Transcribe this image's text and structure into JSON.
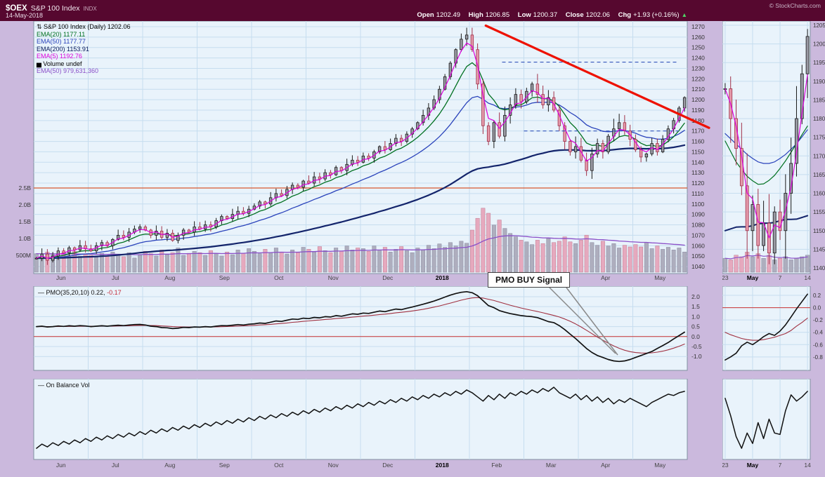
{
  "header": {
    "symbol": "$OEX",
    "index_name": "S&P 100 Index",
    "exchange": "INDX",
    "date": "14-May-2018",
    "copyright": "© StockCharts.com",
    "quote": {
      "open_label": "Open",
      "open": "1202.49",
      "high_label": "High",
      "high": "1206.85",
      "low_label": "Low",
      "low": "1200.37",
      "close_label": "Close",
      "close": "1202.06",
      "chg_label": "Chg",
      "chg": "+1.93 (+0.16%)",
      "direction_arrow": "▲"
    }
  },
  "legend": {
    "main": [
      {
        "icon": "⇅",
        "label": "S&P 100 Index (Daily) 1202.06",
        "color": "#000000"
      },
      {
        "label": "EMA(20) 1177.11",
        "color": "#007020"
      },
      {
        "label": "EMA(50) 1177.77",
        "color": "#2A43BB"
      },
      {
        "label": "EMA(200) 1153.91",
        "color": "#0A1A5C"
      },
      {
        "label": "EMA(5) 1192.76",
        "color": "#DB00DB"
      },
      {
        "icon": "▅",
        "label": "Volume undef",
        "color": "#000000"
      },
      {
        "label": "EMA(50) 979,631,360",
        "color": "#8A4FC8"
      }
    ],
    "pmo_icon": "—",
    "pmo_prefix": "PMO(35,20,10) 0.22,",
    "pmo_signal_value": "-0.17",
    "obv_icon": "—",
    "obv_label": "On Balance Vol"
  },
  "annotation": {
    "buy_signal": "PMO BUY Signal"
  },
  "colors": {
    "header_bg": "#56082F",
    "panel_bg": "#E9F3FB",
    "grid": "#C6DDEF",
    "panel_border": "#8090A0",
    "ema5": "#DB00DB",
    "ema20": "#007020",
    "ema50": "#2A43BB",
    "ema200": "#13246B",
    "ema_vol": "#8A4FC8",
    "candle_up_line": "#1A1A1A",
    "candle_up": "#9A9AA4",
    "candle_down_line": "#A03048",
    "candle_down": "#E49AAB",
    "vol_up": "#AEAEBE",
    "vol_down": "#E6A9BE",
    "trend_red": "#EE1100",
    "dashed_blue": "#3355BB",
    "zero_red": "#CC3333",
    "hline_red": "#D8572F",
    "pmo_line": "#111111",
    "pmo_signal": "#A03040",
    "obv_line": "#111111",
    "tick_text": "#333333"
  },
  "chart_data": [
    {
      "id": "main",
      "type": "candlestick",
      "title": "S&P 100 Index (Daily)",
      "ylim": [
        1040,
        1270
      ],
      "y_tick_step": 10,
      "volume_ticks": [
        "2.5B",
        "2.0B",
        "1.5B",
        "1.0B",
        "500M"
      ],
      "x_labels": [
        "Jun",
        "Jul",
        "Aug",
        "Sep",
        "Oct",
        "Nov",
        "Dec",
        "2018",
        "Feb",
        "Mar",
        "Apr",
        "May"
      ],
      "close": [
        1048,
        1052,
        1046,
        1050,
        1055,
        1053,
        1058,
        1056,
        1060,
        1057,
        1055,
        1060,
        1063,
        1060,
        1066,
        1070,
        1068,
        1073,
        1076,
        1078,
        1075,
        1070,
        1074,
        1068,
        1072,
        1065,
        1070,
        1075,
        1073,
        1078,
        1076,
        1080,
        1078,
        1084,
        1088,
        1086,
        1090,
        1093,
        1091,
        1095,
        1098,
        1102,
        1100,
        1106,
        1110,
        1108,
        1114,
        1118,
        1116,
        1122,
        1120,
        1126,
        1124,
        1130,
        1128,
        1135,
        1132,
        1138,
        1142,
        1140,
        1146,
        1144,
        1150,
        1155,
        1152,
        1158,
        1163,
        1160,
        1167,
        1172,
        1178,
        1185,
        1192,
        1200,
        1210,
        1222,
        1235,
        1248,
        1258,
        1262,
        1248,
        1215,
        1175,
        1160,
        1178,
        1165,
        1185,
        1195,
        1205,
        1198,
        1208,
        1215,
        1205,
        1195,
        1202,
        1190,
        1175,
        1160,
        1150,
        1155,
        1142,
        1132,
        1148,
        1158,
        1150,
        1165,
        1172,
        1178,
        1170,
        1162,
        1152,
        1145,
        1148,
        1158,
        1150,
        1162,
        1172,
        1180,
        1192,
        1202
      ],
      "volume_billions": [
        0.55,
        0.48,
        0.6,
        0.52,
        0.45,
        0.58,
        0.5,
        0.62,
        0.47,
        0.53,
        0.5,
        0.44,
        0.56,
        0.48,
        0.6,
        0.52,
        0.46,
        0.58,
        0.42,
        0.5,
        0.62,
        0.55,
        0.48,
        0.66,
        0.52,
        0.58,
        0.72,
        0.5,
        0.56,
        0.62,
        0.58,
        0.5,
        0.64,
        0.55,
        0.48,
        0.6,
        0.52,
        0.66,
        0.56,
        0.7,
        0.62,
        0.55,
        0.68,
        0.58,
        0.72,
        0.6,
        0.54,
        0.66,
        0.58,
        0.74,
        0.68,
        0.6,
        0.76,
        0.64,
        0.58,
        0.72,
        0.62,
        0.78,
        0.66,
        0.72,
        0.7,
        0.62,
        0.78,
        0.66,
        0.74,
        0.6,
        0.68,
        0.76,
        0.64,
        0.58,
        0.72,
        0.66,
        0.8,
        0.7,
        0.84,
        0.74,
        0.88,
        0.78,
        0.92,
        0.86,
        1.25,
        1.6,
        1.9,
        1.75,
        1.4,
        1.55,
        1.3,
        1.15,
        1.05,
        0.95,
        0.9,
        0.82,
        0.95,
        0.85,
        1.0,
        0.88,
        0.92,
        1.05,
        0.9,
        0.85,
        0.95,
        1.1,
        0.88,
        0.8,
        0.92,
        0.78,
        0.85,
        0.72,
        0.8,
        0.75,
        0.82,
        0.75,
        0.88,
        0.7,
        0.78,
        0.68,
        0.74,
        0.66,
        0.72,
        0.6
      ],
      "annotations": {
        "trendline": {
          "from_index": 83,
          "from_price": 1271,
          "to_index": 124,
          "to_price": 1173
        },
        "dashed_levels": [
          {
            "price": 1236,
            "from_index": 86
          },
          {
            "price": 1170,
            "from_index": 90
          }
        ],
        "volume_hline_billions": 2.5
      }
    },
    {
      "id": "main_mini",
      "type": "candlestick",
      "ylim": [
        1140,
        1205
      ],
      "y_tick_step": 5,
      "x_labels": [
        {
          "label": "23",
          "index": 0
        },
        {
          "label": "May",
          "index": 5,
          "bold": true
        },
        {
          "label": "7",
          "index": 10
        },
        {
          "label": "14",
          "index": 15
        }
      ],
      "close": [
        1188,
        1180,
        1172,
        1162,
        1150,
        1157,
        1146,
        1152,
        1144,
        1155,
        1150,
        1160,
        1168,
        1180,
        1192,
        1202
      ],
      "volume_billions": [
        0.9,
        0.8,
        1.1,
        1.0,
        1.3,
        1.0,
        1.2,
        0.9,
        1.1,
        0.8,
        0.9,
        1.0,
        0.8,
        0.9,
        1.0,
        1.1
      ],
      "ema20_path": [
        1174,
        1168,
        1164,
        1162,
        1164,
        1168,
        1173,
        1178
      ],
      "ema50_path": [
        1176,
        1173,
        1170,
        1168,
        1168,
        1170,
        1173,
        1177
      ],
      "ema200_path": [
        1150,
        1151,
        1151,
        1152,
        1152,
        1153,
        1153,
        1154
      ]
    },
    {
      "id": "pmo",
      "type": "line",
      "label": "PMO(35,20,10)",
      "value": 0.22,
      "signal_value": -0.17,
      "y_ticks": [
        2.0,
        1.5,
        1.0,
        0.5,
        0.0,
        -0.5,
        -1.0
      ],
      "values": [
        0.5,
        0.52,
        0.48,
        0.5,
        0.53,
        0.51,
        0.54,
        0.52,
        0.55,
        0.53,
        0.5,
        0.52,
        0.54,
        0.52,
        0.55,
        0.57,
        0.55,
        0.58,
        0.6,
        0.61,
        0.58,
        0.52,
        0.5,
        0.45,
        0.44,
        0.4,
        0.42,
        0.46,
        0.45,
        0.48,
        0.47,
        0.5,
        0.48,
        0.52,
        0.55,
        0.54,
        0.57,
        0.6,
        0.58,
        0.62,
        0.64,
        0.68,
        0.66,
        0.72,
        0.78,
        0.76,
        0.82,
        0.88,
        0.86,
        0.92,
        0.9,
        0.96,
        0.94,
        1.0,
        0.98,
        1.05,
        1.02,
        1.08,
        1.14,
        1.12,
        1.18,
        1.16,
        1.22,
        1.28,
        1.25,
        1.32,
        1.38,
        1.35,
        1.42,
        1.48,
        1.55,
        1.62,
        1.7,
        1.78,
        1.88,
        1.98,
        2.08,
        2.16,
        2.22,
        2.25,
        2.2,
        2.05,
        1.8,
        1.55,
        1.45,
        1.3,
        1.22,
        1.15,
        1.1,
        1.05,
        1.02,
        1.0,
        0.95,
        0.85,
        0.75,
        0.7,
        0.55,
        0.35,
        0.12,
        -0.1,
        -0.35,
        -0.6,
        -0.8,
        -0.95,
        -1.05,
        -1.15,
        -1.22,
        -1.25,
        -1.22,
        -1.15,
        -1.05,
        -0.95,
        -0.85,
        -0.75,
        -0.6,
        -0.45,
        -0.3,
        -0.12,
        0.05,
        0.22
      ]
    },
    {
      "id": "pmo_mini",
      "type": "line",
      "y_ticks": [
        0.2,
        0.0,
        -0.2,
        -0.4,
        -0.6,
        -0.8
      ],
      "pmo": [
        -0.85,
        -0.8,
        -0.74,
        -0.62,
        -0.56,
        -0.6,
        -0.54,
        -0.47,
        -0.42,
        -0.45,
        -0.38,
        -0.28,
        -0.15,
        -0.02,
        0.1,
        0.22
      ],
      "signal": [
        -0.4,
        -0.44,
        -0.47,
        -0.5,
        -0.52,
        -0.53,
        -0.53,
        -0.52,
        -0.5,
        -0.48,
        -0.45,
        -0.42,
        -0.37,
        -0.3,
        -0.24,
        -0.17
      ]
    },
    {
      "id": "obv",
      "type": "line",
      "label": "On Balance Vol",
      "values": [
        8,
        14,
        10,
        16,
        12,
        18,
        14,
        20,
        16,
        22,
        18,
        24,
        20,
        26,
        22,
        28,
        24,
        30,
        26,
        32,
        28,
        34,
        30,
        36,
        32,
        38,
        34,
        40,
        36,
        42,
        38,
        44,
        40,
        46,
        42,
        48,
        44,
        50,
        46,
        52,
        48,
        54,
        50,
        56,
        52,
        58,
        54,
        60,
        56,
        62,
        58,
        64,
        60,
        66,
        62,
        68,
        64,
        70,
        66,
        72,
        68,
        74,
        70,
        76,
        72,
        78,
        74,
        80,
        76,
        82,
        78,
        84,
        80,
        86,
        82,
        88,
        84,
        90,
        86,
        92,
        88,
        82,
        76,
        84,
        78,
        86,
        80,
        88,
        84,
        90,
        86,
        92,
        88,
        94,
        90,
        96,
        88,
        84,
        80,
        86,
        78,
        84,
        76,
        82,
        74,
        80,
        72,
        78,
        74,
        80,
        76,
        72,
        68,
        74,
        78,
        82,
        86,
        84,
        88,
        90
      ]
    },
    {
      "id": "obv_mini",
      "type": "line",
      "values": [
        80,
        55,
        25,
        8,
        30,
        15,
        45,
        22,
        50,
        30,
        28,
        62,
        85,
        76,
        82,
        90
      ]
    }
  ]
}
